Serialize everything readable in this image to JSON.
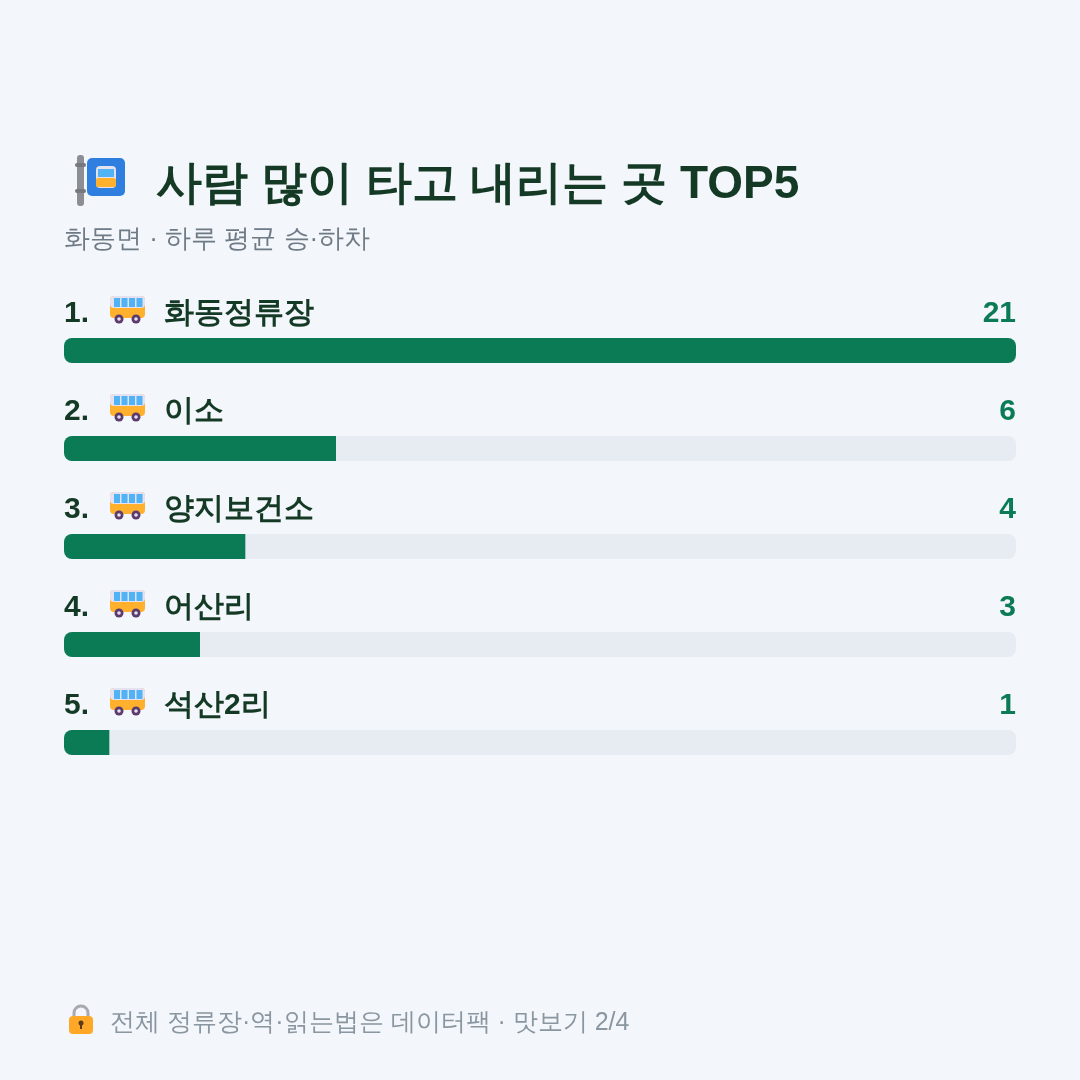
{
  "chart_data": {
    "type": "bar",
    "orientation": "horizontal",
    "title": "사람 많이 타고 내리는 곳 TOP5",
    "subtitle": "화동면 · 하루 평균 승·하차",
    "categories": [
      "1. 화동정류장",
      "2. 이소",
      "3. 양지보건소",
      "4. 어산리",
      "5. 석산2리"
    ],
    "values": [
      21,
      6,
      4,
      3,
      1
    ],
    "color": "#0b7b55",
    "data_labels": true,
    "annotations": [
      "전체 정류장·역·읽는법은 데이터팩 · 맛보기 2/4"
    ]
  }
}
